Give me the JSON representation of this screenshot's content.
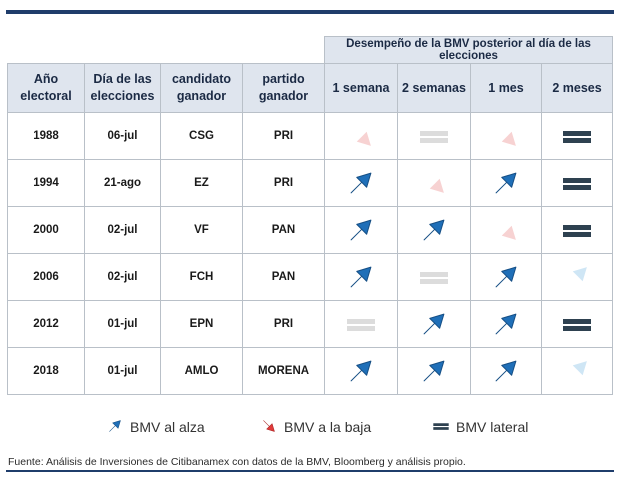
{
  "table": {
    "group_header": "Desempeño de la BMV posterior al día de las elecciones",
    "columns": [
      "Año electoral",
      "Día de las elecciones",
      "candidato ganador",
      "partido ganador",
      "1 semana",
      "2 semanas",
      "1 mes",
      "2 meses"
    ],
    "rows": [
      {
        "year": "1988",
        "date": "06-jul",
        "candidate": "CSG",
        "party": "PRI",
        "perf": [
          "down-faded",
          "flat-faded",
          "down-faded",
          "flat"
        ]
      },
      {
        "year": "1994",
        "date": "21-ago",
        "candidate": "EZ",
        "party": "PRI",
        "perf": [
          "up",
          "down-faded",
          "up",
          "flat"
        ]
      },
      {
        "year": "2000",
        "date": "02-jul",
        "candidate": "VF",
        "party": "PAN",
        "perf": [
          "up",
          "up",
          "down-faded",
          "flat"
        ]
      },
      {
        "year": "2006",
        "date": "02-jul",
        "candidate": "FCH",
        "party": "PAN",
        "perf": [
          "up",
          "flat-faded",
          "up",
          "up-faded"
        ]
      },
      {
        "year": "2012",
        "date": "01-jul",
        "candidate": "EPN",
        "party": "PRI",
        "perf": [
          "flat-faded",
          "up",
          "up",
          "flat"
        ]
      },
      {
        "year": "2018",
        "date": "01-jul",
        "candidate": "AMLO",
        "party": "MORENA",
        "perf": [
          "up",
          "up",
          "up",
          "up-faded"
        ]
      }
    ]
  },
  "legend": [
    {
      "icon": "up-arrow-icon",
      "kind": "up",
      "label": "BMV al alza"
    },
    {
      "icon": "down-arrow-icon",
      "kind": "down",
      "label": "BMV a la baja"
    },
    {
      "icon": "flat-lines-icon",
      "kind": "flat",
      "label": "BMV lateral"
    }
  ],
  "colors": {
    "up": "#1f6fb8",
    "up_faded": "#cfe6f5",
    "down": "#e03a3a",
    "down_faded": "#f7d2d2",
    "flat": "#2e4150",
    "flat_faded": "#dcdcdc"
  },
  "source": "Fuente: Análisis de Inversiones de Citibanamex con datos de la BMV, Bloomberg y análisis propio."
}
